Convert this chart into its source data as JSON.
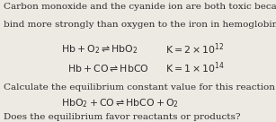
{
  "bg_color": "#ede9e3",
  "text_color": "#2b2b2b",
  "intro_line1": "Carbon monoxide and the cyanide ion are both toxic because they",
  "intro_line2": "bind more strongly than oxygen to the iron in hemoglobin (Hb).",
  "eq1": "$\\mathrm{Hb + O_2 \\rightleftharpoons HbO_2}$",
  "eq1_K": "$\\mathrm{K = 2 \\times 10^{12}}$",
  "eq2": "$\\mathrm{Hb + CO \\rightleftharpoons HbCO}$",
  "eq2_K": "$\\mathrm{K = 1 \\times 10^{14}}$",
  "calc_line": "Calculate the equilibrium constant value for this reaction.",
  "eq3": "$\\mathrm{HbO_2 + CO \\rightleftharpoons HbCO + O_2}$",
  "footer": "Does the equilibrium favor reactants or products?",
  "font_size_body": 7.5,
  "font_size_eq": 7.8,
  "font_size_eq_small": 7.2
}
